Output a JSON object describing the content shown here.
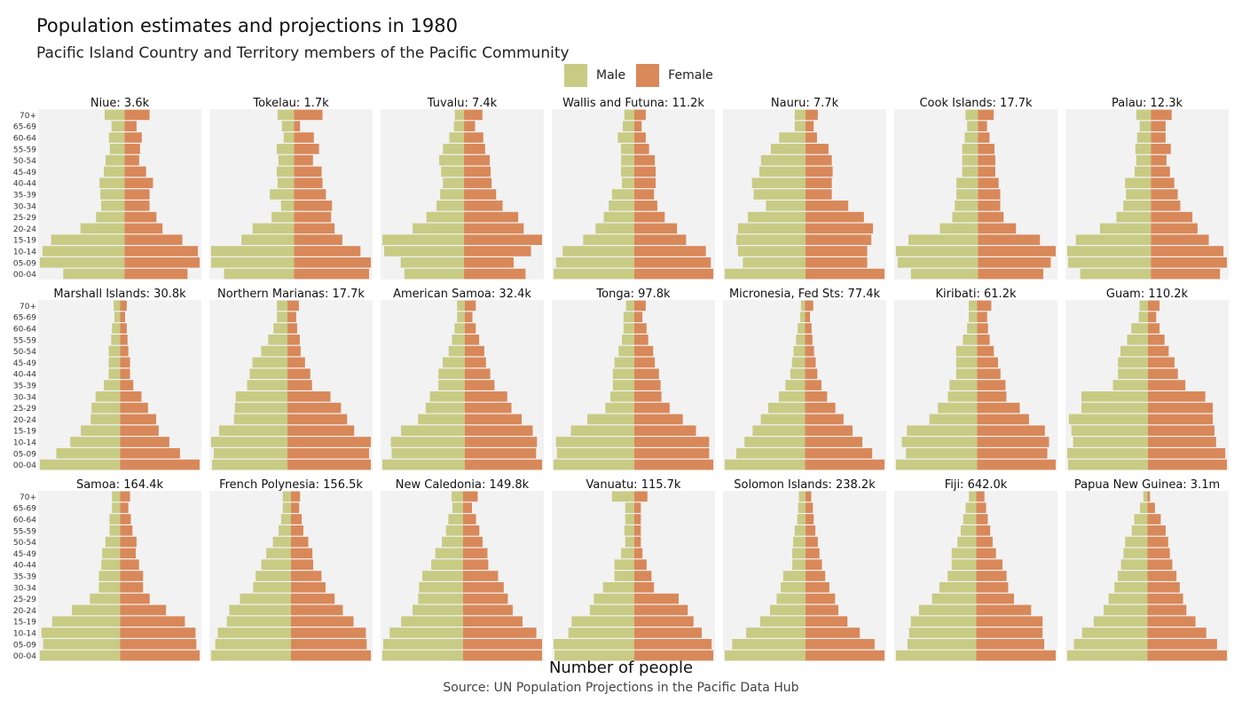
{
  "chart_data": {
    "type": "bar",
    "title": "Population estimates and projections in 1980",
    "subtitle": "Pacific Island Country and Territory members of the Pacific Community",
    "xlabel": "Number of people",
    "caption": "Source: UN Population Projections in the Pacific Data Hub",
    "legend": {
      "placement": "top",
      "items": [
        {
          "name": "Male",
          "color": "#c8cb84"
        },
        {
          "name": "Female",
          "color": "#d9885a"
        }
      ]
    },
    "grid": false,
    "panel_background": "#f2f2f2",
    "age_groups": [
      "00-04",
      "05-09",
      "10-14",
      "15-19",
      "20-24",
      "25-29",
      "30-34",
      "35-39",
      "40-44",
      "45-49",
      "50-54",
      "55-59",
      "60-64",
      "65-69",
      "70+"
    ],
    "panels": [
      {
        "title": "Niue: 3.6k",
        "male": [
          0.71,
          0.98,
          0.95,
          0.85,
          0.51,
          0.33,
          0.27,
          0.28,
          0.29,
          0.24,
          0.22,
          0.17,
          0.18,
          0.15,
          0.23
        ],
        "female": [
          0.73,
          0.87,
          0.85,
          0.67,
          0.44,
          0.37,
          0.29,
          0.29,
          0.33,
          0.25,
          0.17,
          0.18,
          0.2,
          0.14,
          0.29
        ]
      },
      {
        "title": "Tokelau: 1.7k",
        "male": [
          0.81,
          0.96,
          0.96,
          0.61,
          0.48,
          0.26,
          0.15,
          0.28,
          0.19,
          0.2,
          0.18,
          0.2,
          0.12,
          0.14,
          0.19
        ],
        "female": [
          0.87,
          0.89,
          0.77,
          0.56,
          0.47,
          0.43,
          0.44,
          0.37,
          0.33,
          0.32,
          0.22,
          0.29,
          0.23,
          0.07,
          0.33
        ]
      },
      {
        "title": "Tuvalu: 7.4k",
        "male": [
          0.65,
          0.69,
          0.87,
          0.89,
          0.56,
          0.41,
          0.3,
          0.26,
          0.23,
          0.25,
          0.27,
          0.23,
          0.16,
          0.11,
          0.1
        ],
        "female": [
          0.67,
          0.54,
          0.73,
          0.85,
          0.65,
          0.59,
          0.42,
          0.35,
          0.3,
          0.29,
          0.28,
          0.23,
          0.21,
          0.12,
          0.2
        ]
      },
      {
        "title": "Wallis and Futuna: 11.2k",
        "male": [
          0.98,
          0.95,
          0.87,
          0.62,
          0.47,
          0.37,
          0.31,
          0.27,
          0.15,
          0.16,
          0.16,
          0.16,
          0.2,
          0.14,
          0.12
        ],
        "female": [
          0.96,
          0.93,
          0.87,
          0.63,
          0.52,
          0.37,
          0.28,
          0.24,
          0.26,
          0.26,
          0.25,
          0.18,
          0.14,
          0.09,
          0.14
        ]
      },
      {
        "title": "Nauru: 7.7k",
        "male": [
          0.98,
          0.76,
          0.82,
          0.84,
          0.82,
          0.7,
          0.48,
          0.63,
          0.65,
          0.56,
          0.54,
          0.42,
          0.32,
          0.13,
          0.13
        ],
        "female": [
          0.96,
          0.75,
          0.75,
          0.8,
          0.82,
          0.71,
          0.52,
          0.32,
          0.32,
          0.33,
          0.32,
          0.28,
          0.14,
          0.1,
          0.15
        ]
      },
      {
        "title": "Cook Islands: 17.7k",
        "male": [
          0.81,
          0.97,
          0.99,
          0.84,
          0.46,
          0.31,
          0.28,
          0.26,
          0.26,
          0.19,
          0.19,
          0.19,
          0.16,
          0.13,
          0.15
        ],
        "female": [
          0.79,
          0.88,
          0.94,
          0.75,
          0.46,
          0.31,
          0.27,
          0.27,
          0.25,
          0.21,
          0.21,
          0.2,
          0.14,
          0.11,
          0.19
        ]
      },
      {
        "title": "Palau: 12.3k",
        "male": [
          0.82,
          0.96,
          0.97,
          0.87,
          0.59,
          0.4,
          0.32,
          0.29,
          0.3,
          0.19,
          0.17,
          0.18,
          0.16,
          0.13,
          0.17
        ],
        "female": [
          0.8,
          0.88,
          0.84,
          0.67,
          0.54,
          0.48,
          0.34,
          0.31,
          0.27,
          0.22,
          0.18,
          0.23,
          0.17,
          0.17,
          0.24
        ]
      },
      {
        "title": "Marshall Islands: 30.8k",
        "male": [
          0.98,
          0.78,
          0.61,
          0.48,
          0.36,
          0.35,
          0.3,
          0.2,
          0.14,
          0.14,
          0.14,
          0.11,
          0.1,
          0.07,
          0.08
        ],
        "female": [
          0.97,
          0.73,
          0.6,
          0.47,
          0.44,
          0.34,
          0.26,
          0.16,
          0.12,
          0.12,
          0.1,
          0.09,
          0.08,
          0.06,
          0.08
        ]
      },
      {
        "title": "Northern Marianas: 17.7k",
        "male": [
          0.86,
          0.84,
          0.87,
          0.78,
          0.61,
          0.6,
          0.59,
          0.46,
          0.43,
          0.4,
          0.3,
          0.22,
          0.16,
          0.12,
          0.12
        ],
        "female": [
          0.95,
          0.93,
          0.95,
          0.76,
          0.68,
          0.61,
          0.49,
          0.28,
          0.26,
          0.2,
          0.15,
          0.14,
          0.11,
          0.1,
          0.13
        ]
      },
      {
        "title": "American Samoa: 32.4k",
        "male": [
          0.97,
          0.86,
          0.87,
          0.75,
          0.55,
          0.46,
          0.41,
          0.31,
          0.31,
          0.26,
          0.19,
          0.15,
          0.12,
          0.09,
          0.09
        ],
        "female": [
          0.91,
          0.84,
          0.85,
          0.8,
          0.67,
          0.55,
          0.5,
          0.35,
          0.3,
          0.25,
          0.23,
          0.17,
          0.13,
          0.09,
          0.13
        ]
      },
      {
        "title": "Tonga: 97.8k",
        "male": [
          0.98,
          0.94,
          0.95,
          0.77,
          0.57,
          0.35,
          0.29,
          0.26,
          0.26,
          0.24,
          0.19,
          0.15,
          0.13,
          0.13,
          0.1
        ],
        "female": [
          0.96,
          0.91,
          0.91,
          0.75,
          0.59,
          0.43,
          0.33,
          0.32,
          0.3,
          0.25,
          0.23,
          0.17,
          0.15,
          0.1,
          0.14
        ]
      },
      {
        "title": "Micronesia, Fed Sts: 77.4k",
        "male": [
          0.98,
          0.84,
          0.74,
          0.64,
          0.54,
          0.45,
          0.32,
          0.24,
          0.18,
          0.16,
          0.14,
          0.11,
          0.09,
          0.06,
          0.05
        ],
        "female": [
          0.97,
          0.82,
          0.7,
          0.58,
          0.47,
          0.37,
          0.27,
          0.2,
          0.15,
          0.13,
          0.11,
          0.09,
          0.08,
          0.06,
          0.1
        ]
      },
      {
        "title": "Kiribati: 61.2k",
        "male": [
          0.97,
          0.85,
          0.9,
          0.84,
          0.57,
          0.47,
          0.35,
          0.33,
          0.25,
          0.25,
          0.25,
          0.17,
          0.12,
          0.1,
          0.1
        ],
        "female": [
          0.94,
          0.84,
          0.86,
          0.81,
          0.62,
          0.51,
          0.35,
          0.34,
          0.28,
          0.25,
          0.2,
          0.15,
          0.13,
          0.12,
          0.17
        ]
      },
      {
        "title": "Guam: 110.2k",
        "male": [
          0.96,
          0.97,
          0.9,
          0.92,
          0.95,
          0.8,
          0.8,
          0.42,
          0.36,
          0.36,
          0.33,
          0.25,
          0.2,
          0.11,
          0.1
        ],
        "female": [
          0.95,
          0.93,
          0.82,
          0.8,
          0.78,
          0.78,
          0.69,
          0.45,
          0.36,
          0.32,
          0.25,
          0.2,
          0.14,
          0.1,
          0.14
        ]
      },
      {
        "title": "Samoa: 164.4k",
        "male": [
          0.98,
          0.94,
          0.96,
          0.83,
          0.59,
          0.37,
          0.26,
          0.26,
          0.23,
          0.22,
          0.18,
          0.13,
          0.13,
          0.1,
          0.1
        ],
        "female": [
          0.97,
          0.93,
          0.92,
          0.79,
          0.56,
          0.36,
          0.28,
          0.28,
          0.23,
          0.19,
          0.2,
          0.15,
          0.13,
          0.1,
          0.12
        ]
      },
      {
        "title": "French Polynesia: 156.5k",
        "male": [
          0.97,
          0.92,
          0.89,
          0.78,
          0.75,
          0.62,
          0.46,
          0.43,
          0.36,
          0.3,
          0.22,
          0.15,
          0.12,
          0.1,
          0.1
        ],
        "female": [
          0.97,
          0.92,
          0.91,
          0.76,
          0.63,
          0.53,
          0.42,
          0.37,
          0.27,
          0.26,
          0.21,
          0.15,
          0.13,
          0.1,
          0.11
        ]
      },
      {
        "title": "New Caledonia: 149.8k",
        "male": [
          0.99,
          0.98,
          0.9,
          0.76,
          0.62,
          0.55,
          0.54,
          0.5,
          0.39,
          0.34,
          0.26,
          0.21,
          0.18,
          0.13,
          0.14
        ],
        "female": [
          0.97,
          0.97,
          0.9,
          0.73,
          0.61,
          0.55,
          0.5,
          0.43,
          0.31,
          0.3,
          0.24,
          0.2,
          0.16,
          0.11,
          0.18
        ]
      },
      {
        "title": "Vanuatu: 115.7k",
        "male": [
          0.97,
          0.98,
          0.8,
          0.76,
          0.54,
          0.49,
          0.38,
          0.24,
          0.24,
          0.16,
          0.11,
          0.12,
          0.11,
          0.11,
          0.27
        ],
        "female": [
          0.96,
          0.94,
          0.82,
          0.72,
          0.65,
          0.54,
          0.24,
          0.21,
          0.15,
          0.1,
          0.08,
          0.08,
          0.08,
          0.08,
          0.16
        ]
      },
      {
        "title": "Solomon Islands: 238.2k",
        "male": [
          0.98,
          0.89,
          0.72,
          0.55,
          0.43,
          0.35,
          0.3,
          0.27,
          0.16,
          0.16,
          0.15,
          0.13,
          0.1,
          0.09,
          0.08
        ],
        "female": [
          0.96,
          0.84,
          0.66,
          0.51,
          0.4,
          0.36,
          0.29,
          0.24,
          0.2,
          0.17,
          0.15,
          0.12,
          0.1,
          0.09,
          0.07
        ]
      },
      {
        "title": "Fiji: 642.0k",
        "male": [
          0.98,
          0.84,
          0.82,
          0.8,
          0.7,
          0.54,
          0.45,
          0.35,
          0.3,
          0.3,
          0.23,
          0.19,
          0.16,
          0.13,
          0.09
        ],
        "female": [
          0.97,
          0.83,
          0.81,
          0.81,
          0.67,
          0.46,
          0.39,
          0.37,
          0.32,
          0.24,
          0.2,
          0.17,
          0.14,
          0.12,
          0.1
        ]
      },
      {
        "title": "Papua New Guinea: 3.1m",
        "male": [
          0.97,
          0.89,
          0.79,
          0.65,
          0.53,
          0.47,
          0.4,
          0.36,
          0.32,
          0.29,
          0.27,
          0.19,
          0.16,
          0.09,
          0.05
        ],
        "female": [
          0.96,
          0.84,
          0.71,
          0.58,
          0.47,
          0.43,
          0.39,
          0.35,
          0.3,
          0.27,
          0.25,
          0.22,
          0.16,
          0.09,
          0.03
        ]
      }
    ]
  }
}
